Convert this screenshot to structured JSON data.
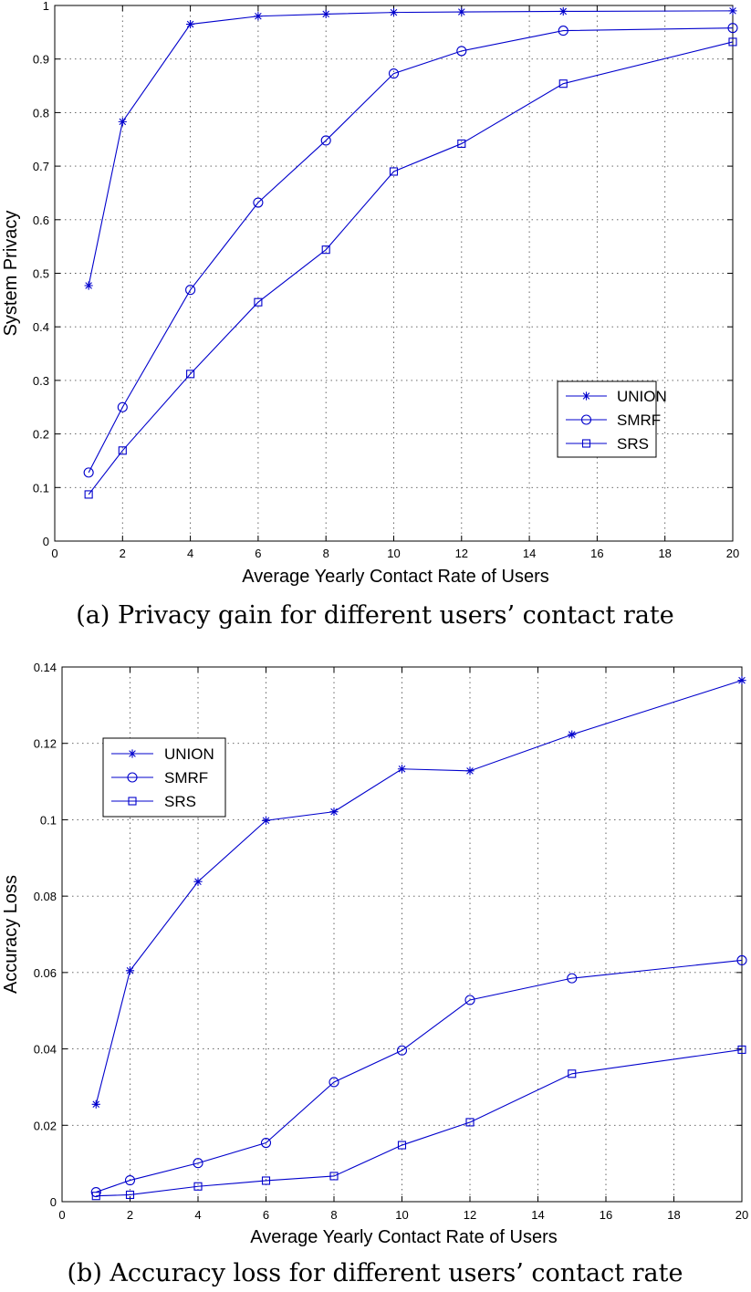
{
  "chart_data": [
    {
      "type": "line",
      "caption": "(a) Privacy gain for different users’ contact rate",
      "xlabel": "Average Yearly Contact Rate of Users",
      "ylabel": "System Privacy",
      "xlim": [
        0,
        20
      ],
      "ylim": [
        0,
        1
      ],
      "xticks": [
        0,
        2,
        4,
        6,
        8,
        10,
        12,
        14,
        16,
        18,
        20
      ],
      "yticks": [
        0,
        0.1,
        0.2,
        0.3,
        0.4,
        0.5,
        0.6,
        0.7,
        0.8,
        0.9,
        1
      ],
      "ytick_labels": [
        "0",
        "0.1",
        "0.2",
        "0.3",
        "0.4",
        "0.5",
        "0.6",
        "0.7",
        "0.8",
        "0.9",
        "1"
      ],
      "grid": true,
      "legend_position": "lower-right",
      "x": [
        1,
        2,
        4,
        6,
        8,
        10,
        12,
        15,
        20
      ],
      "series": [
        {
          "name": "UNION",
          "marker": "star",
          "values": [
            0.477,
            0.783,
            0.965,
            0.98,
            0.984,
            0.987,
            0.988,
            0.989,
            0.99
          ]
        },
        {
          "name": "SMRF",
          "marker": "circle",
          "values": [
            0.128,
            0.25,
            0.469,
            0.632,
            0.748,
            0.873,
            0.915,
            0.953,
            0.958
          ]
        },
        {
          "name": "SRS",
          "marker": "square",
          "values": [
            0.087,
            0.169,
            0.312,
            0.446,
            0.544,
            0.69,
            0.742,
            0.854,
            0.932
          ]
        }
      ]
    },
    {
      "type": "line",
      "caption": "(b) Accuracy loss for different users’ contact rate",
      "xlabel": "Average Yearly Contact Rate of Users",
      "ylabel": "Accuracy Loss",
      "xlim": [
        0,
        20
      ],
      "ylim": [
        0,
        0.14
      ],
      "xticks": [
        0,
        2,
        4,
        6,
        8,
        10,
        12,
        14,
        16,
        18,
        20
      ],
      "yticks": [
        0,
        0.02,
        0.04,
        0.06,
        0.08,
        0.1,
        0.12,
        0.14
      ],
      "ytick_labels": [
        "0",
        "0.02",
        "0.04",
        "0.06",
        "0.08",
        "0.1",
        "0.12",
        "0.14"
      ],
      "grid": true,
      "legend_position": "upper-left",
      "x": [
        1,
        2,
        4,
        6,
        8,
        10,
        12,
        15,
        20
      ],
      "series": [
        {
          "name": "UNION",
          "marker": "star",
          "values": [
            0.0255,
            0.0605,
            0.0838,
            0.0998,
            0.1021,
            0.1133,
            0.1128,
            0.1223,
            0.1365
          ]
        },
        {
          "name": "SMRF",
          "marker": "circle",
          "values": [
            0.0025,
            0.0056,
            0.0101,
            0.0154,
            0.0313,
            0.0396,
            0.0528,
            0.0585,
            0.0632
          ]
        },
        {
          "name": "SRS",
          "marker": "square",
          "values": [
            0.0015,
            0.0018,
            0.004,
            0.0055,
            0.0067,
            0.0148,
            0.0208,
            0.0335,
            0.0398
          ]
        }
      ]
    }
  ]
}
